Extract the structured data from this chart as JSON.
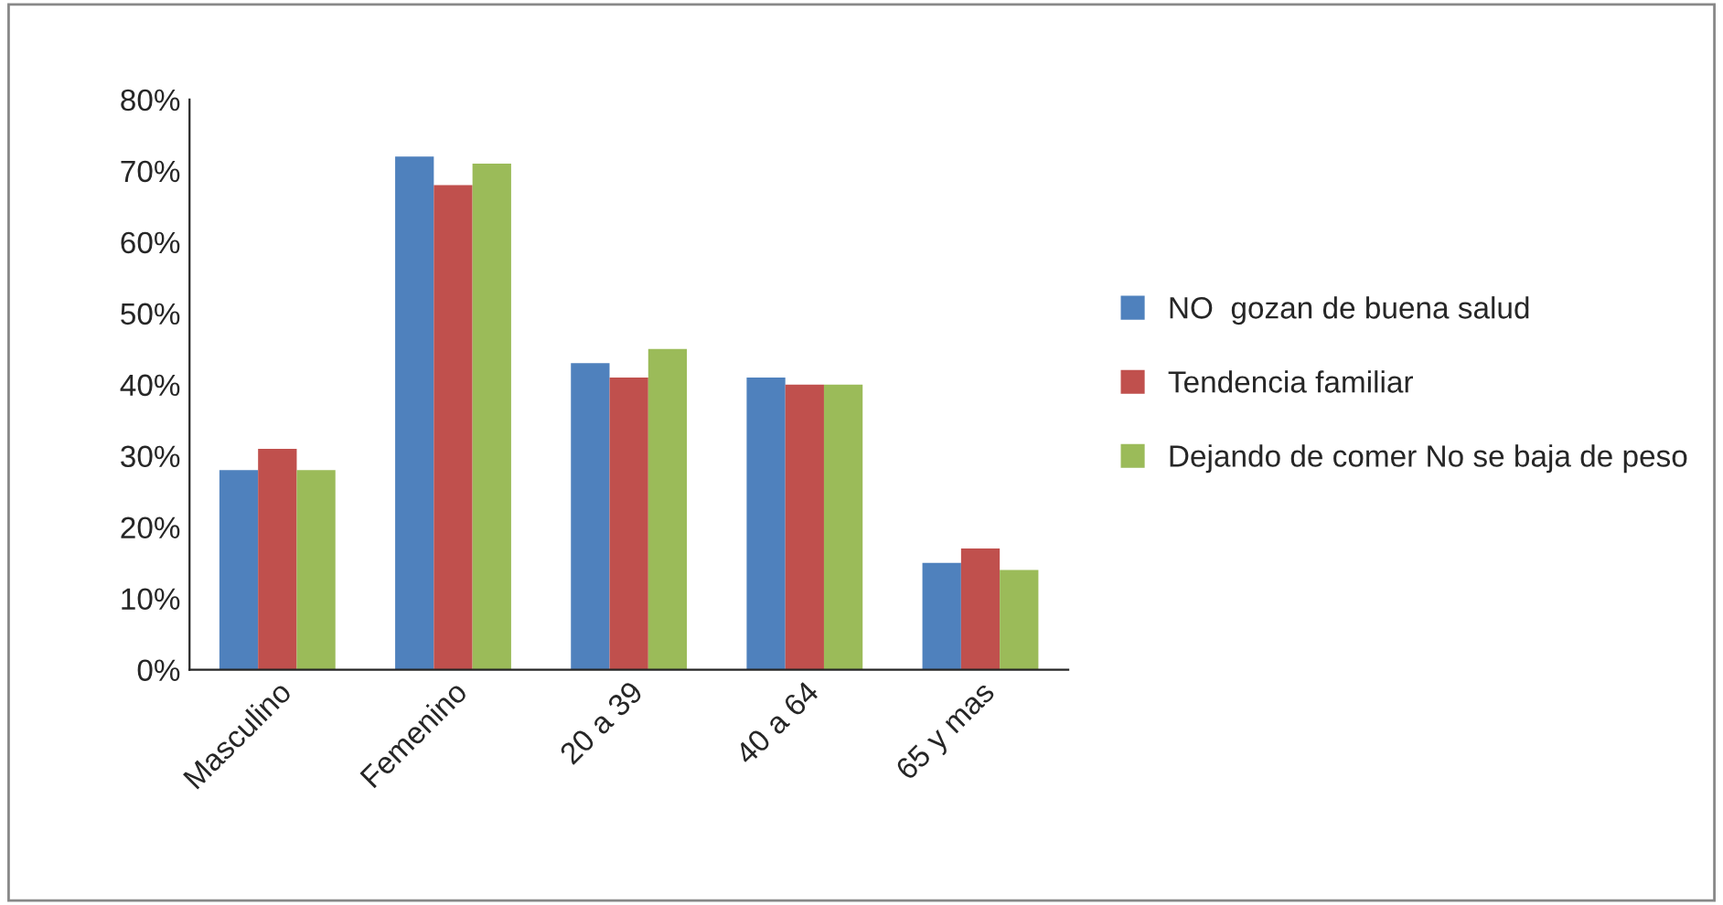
{
  "chart_data": {
    "type": "bar",
    "categories": [
      "Masculino",
      "Femenino",
      "20 a 39",
      "40 a 64",
      "65 y mas"
    ],
    "series": [
      {
        "name": "NO  gozan de buena salud",
        "color": "#4f81bd",
        "values": [
          28,
          72,
          43,
          41,
          15
        ]
      },
      {
        "name": "Tendencia familiar",
        "color": "#c0504d",
        "values": [
          31,
          68,
          41,
          40,
          17
        ]
      },
      {
        "name": "Dejando de comer No se baja de peso",
        "color": "#9bbb59",
        "values": [
          28,
          71,
          45,
          40,
          14
        ]
      }
    ],
    "ylim": [
      0,
      80
    ],
    "yticks": [
      {
        "value": 0,
        "label": "0%"
      },
      {
        "value": 10,
        "label": "10%"
      },
      {
        "value": 20,
        "label": "20%"
      },
      {
        "value": 30,
        "label": "30%"
      },
      {
        "value": 40,
        "label": "40%"
      },
      {
        "value": 50,
        "label": "50%"
      },
      {
        "value": 60,
        "label": "60%"
      },
      {
        "value": 70,
        "label": "70%"
      },
      {
        "value": 80,
        "label": "80%"
      }
    ],
    "grid": false,
    "legend": "right"
  }
}
